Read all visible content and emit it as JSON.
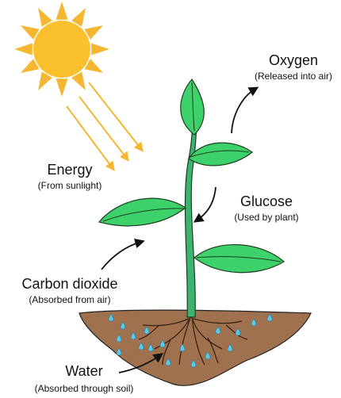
{
  "labels": [
    {
      "title": "Energy",
      "subtitle": "(From sunlight)"
    },
    {
      "title": "Oxygen",
      "subtitle": "(Released into air)"
    },
    {
      "title": "Glucose",
      "subtitle": "(Used by plant)"
    },
    {
      "title": "Carbon dioxide",
      "subtitle": "(Absorbed from air)"
    },
    {
      "title": "Water",
      "subtitle": "(Absorbed through soil)"
    }
  ]
}
